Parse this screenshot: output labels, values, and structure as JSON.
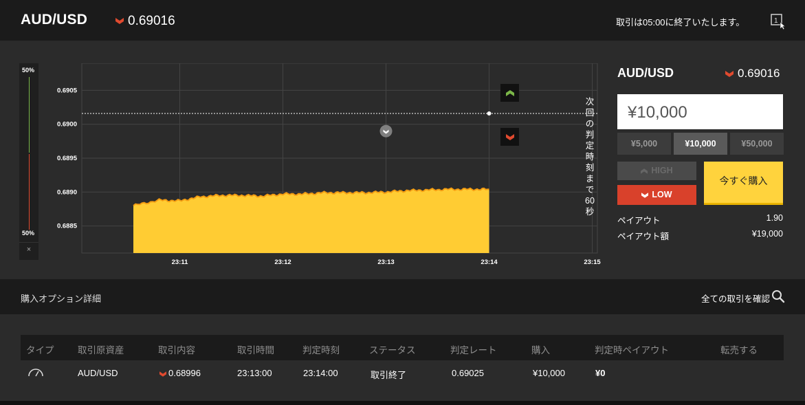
{
  "header": {
    "pair": "AUD/USD",
    "rate": "0.69016",
    "notice": "取引は05:00に終了いたします。",
    "window_icon_label": "1"
  },
  "gauge": {
    "top_pct": "50%",
    "bottom_pct": "50%",
    "close_label": "×"
  },
  "chart": {
    "y_ticks": [
      "0.6905",
      "0.6900",
      "0.6895",
      "0.6890",
      "0.6885"
    ],
    "x_ticks": [
      "23:11",
      "23:12",
      "23:13",
      "23:14",
      "23:15"
    ],
    "countdown_text": [
      "次",
      "回",
      "の",
      "判",
      "定",
      "時",
      "刻",
      "ま",
      "で",
      "60",
      "秒"
    ]
  },
  "chart_data": {
    "type": "area",
    "x_ticks": [
      "23:11",
      "23:12",
      "23:13",
      "23:14",
      "23:15"
    ],
    "ylim": [
      0.6881,
      0.6909
    ],
    "fill_color": "#ffcc33",
    "line_color": "#f39c12",
    "series": [
      {
        "x_min": [
          10.55,
          10.8,
          11.0,
          11.2,
          11.4,
          11.6,
          11.8,
          12.0,
          12.2,
          12.4,
          12.6,
          12.8,
          13.0,
          13.2,
          13.4,
          13.6,
          13.8,
          14.0
        ],
        "values": [
          0.6888,
          0.68888,
          0.68887,
          0.68893,
          0.68895,
          0.68895,
          0.68894,
          0.68897,
          0.68897,
          0.68899,
          0.68899,
          0.68899,
          0.689,
          0.68902,
          0.68903,
          0.68904,
          0.68904,
          0.68904
        ]
      }
    ],
    "entry": {
      "x_min": 13.0,
      "value": 0.68996
    },
    "current_rate_line": 0.69016
  },
  "trade_panel": {
    "pair": "AUD/USD",
    "rate": "0.69016",
    "amount": "¥10,000",
    "presets": [
      "¥5,000",
      "¥10,000",
      "¥50,000"
    ],
    "active_preset": 1,
    "high_label": "HIGH",
    "low_label": "LOW",
    "buy_label": "今すぐ購入",
    "payout_label": "ペイアウト",
    "payout_value": "1.90",
    "payout_amount_label": "ペイアウト額",
    "payout_amount_value": "¥19,000"
  },
  "details": {
    "title": "購入オプション詳細",
    "view_all": "全ての取引を確認"
  },
  "table": {
    "headers": [
      "タイプ",
      "取引原資産",
      "取引内容",
      "取引時間",
      "判定時刻",
      "ステータス",
      "判定レート",
      "購入",
      "判定時ペイアウト",
      "転売する"
    ],
    "row": {
      "asset": "AUD/USD",
      "content": "0.68996",
      "trade_time": "23:13:00",
      "judge_time": "23:14:00",
      "status": "取引終了",
      "judge_rate": "0.69025",
      "purchase": "¥10,000",
      "payout": "¥0",
      "resell": ""
    }
  },
  "colors": {
    "down": "#e04a2f",
    "up": "#7ab648",
    "accent": "#ffd33d"
  }
}
